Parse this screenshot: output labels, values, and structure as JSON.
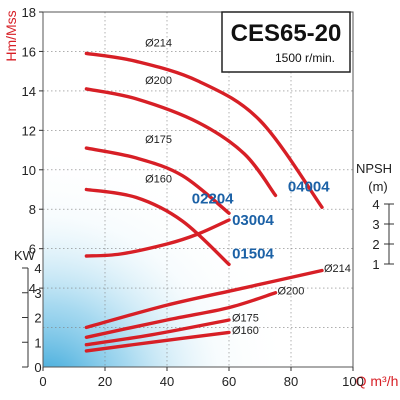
{
  "chart_data": {
    "type": "line",
    "title": "CES65-20",
    "subtitle": "1500 r/min.",
    "xlabel": "Q m³/h",
    "x_ticks": [
      "0",
      "20",
      "40",
      "60",
      "80",
      "100"
    ],
    "xlim": [
      0,
      100
    ],
    "head_axis": {
      "label": "Hm/Mss",
      "ylim": [
        0,
        18
      ],
      "ticks": [
        "0",
        "2",
        "4",
        "6",
        "8",
        "10",
        "12",
        "14",
        "16",
        "18"
      ]
    },
    "power_axis": {
      "label": "KW",
      "ylim": [
        0,
        4
      ],
      "ticks": [
        "0",
        "1",
        "2",
        "3",
        "4"
      ]
    },
    "npsh_axis": {
      "label_line1": "NPSH",
      "label_line2": "(m)",
      "ylim": [
        1,
        4
      ],
      "ticks": [
        "1",
        "2",
        "3",
        "4"
      ]
    },
    "head_curves": [
      {
        "name": "Ø214",
        "points": [
          [
            14,
            15.9
          ],
          [
            30,
            15.5
          ],
          [
            50,
            14.5
          ],
          [
            70,
            12.5
          ],
          [
            90,
            8.1
          ]
        ]
      },
      {
        "name": "Ø200",
        "points": [
          [
            14,
            14.1
          ],
          [
            30,
            13.6
          ],
          [
            50,
            12.4
          ],
          [
            65,
            10.8
          ],
          [
            75,
            8.7
          ]
        ]
      },
      {
        "name": "Ø175",
        "points": [
          [
            14,
            11.1
          ],
          [
            30,
            10.6
          ],
          [
            45,
            9.7
          ],
          [
            60,
            7.8
          ]
        ]
      },
      {
        "name": "Ø160",
        "points": [
          [
            14,
            9.0
          ],
          [
            30,
            8.6
          ],
          [
            45,
            7.4
          ],
          [
            60,
            5.2
          ]
        ]
      }
    ],
    "npsh_curve": {
      "points": [
        [
          14,
          1.4
        ],
        [
          25,
          1.5
        ],
        [
          40,
          2.0
        ],
        [
          50,
          2.5
        ],
        [
          60,
          3.2
        ]
      ]
    },
    "power_curves": [
      {
        "name": "Ø214",
        "points": [
          [
            14,
            1.6
          ],
          [
            40,
            2.5
          ],
          [
            65,
            3.2
          ],
          [
            90,
            3.9
          ]
        ]
      },
      {
        "name": "Ø200",
        "points": [
          [
            14,
            1.2
          ],
          [
            40,
            1.9
          ],
          [
            60,
            2.4
          ],
          [
            75,
            3.0
          ]
        ]
      },
      {
        "name": "Ø175",
        "points": [
          [
            14,
            0.9
          ],
          [
            35,
            1.3
          ],
          [
            60,
            1.9
          ]
        ]
      },
      {
        "name": "Ø160",
        "points": [
          [
            14,
            0.65
          ],
          [
            35,
            1.0
          ],
          [
            60,
            1.4
          ]
        ]
      }
    ],
    "head_labels": [
      "Ø214",
      "Ø200",
      "Ø175",
      "Ø160"
    ],
    "power_labels": [
      "Ø214",
      "Ø200",
      "Ø175",
      "Ø160"
    ],
    "model_labels": [
      "02204",
      "03004",
      "04004",
      "01504"
    ]
  },
  "colors": {
    "curve": "#d71f26",
    "model_text": "#1b61a6",
    "axis_text": "#d71f26",
    "glow": "#3aa8d8",
    "grid": "#7f7f7f"
  }
}
